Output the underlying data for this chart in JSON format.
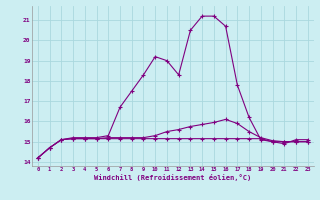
{
  "bg_color": "#cceef2",
  "grid_color": "#aad8de",
  "line_color": "#800080",
  "xlabel": "Windchill (Refroidissement éolien,°C)",
  "xlim": [
    -0.5,
    23.5
  ],
  "ylim": [
    13.8,
    21.7
  ],
  "yticks": [
    14,
    15,
    16,
    17,
    18,
    19,
    20,
    21
  ],
  "xticks": [
    0,
    1,
    2,
    3,
    4,
    5,
    6,
    7,
    8,
    9,
    10,
    11,
    12,
    13,
    14,
    15,
    16,
    17,
    18,
    19,
    20,
    21,
    22,
    23
  ],
  "series1_x": [
    0,
    1,
    2,
    3,
    4,
    5,
    6,
    7,
    8,
    9,
    10,
    11,
    12,
    13,
    14,
    15,
    16,
    17,
    18,
    19,
    20,
    21,
    22,
    23
  ],
  "series1_y": [
    14.2,
    14.7,
    15.1,
    15.15,
    15.15,
    15.15,
    15.15,
    15.15,
    15.15,
    15.15,
    15.15,
    15.15,
    15.15,
    15.15,
    15.15,
    15.15,
    15.15,
    15.15,
    15.15,
    15.15,
    15.0,
    14.9,
    15.1,
    15.1
  ],
  "series2_x": [
    0,
    1,
    2,
    3,
    4,
    5,
    6,
    7,
    8,
    9,
    10,
    11,
    12,
    13,
    14,
    15,
    16,
    17,
    18,
    19,
    20,
    21,
    22,
    23
  ],
  "series2_y": [
    14.2,
    14.7,
    15.1,
    15.15,
    15.15,
    15.15,
    15.2,
    15.2,
    15.2,
    15.2,
    15.3,
    15.5,
    15.6,
    15.75,
    15.85,
    15.95,
    16.1,
    15.9,
    15.5,
    15.2,
    15.05,
    15.0,
    15.0,
    15.0
  ],
  "series3_x": [
    0,
    1,
    2,
    3,
    4,
    5,
    6,
    7,
    8,
    9,
    10,
    11,
    12,
    13,
    14,
    15,
    16,
    17,
    18,
    19,
    20,
    21,
    22,
    23
  ],
  "series3_y": [
    14.2,
    14.7,
    15.1,
    15.2,
    15.2,
    15.2,
    15.3,
    16.7,
    17.5,
    18.3,
    19.2,
    19.0,
    18.3,
    20.5,
    21.2,
    21.2,
    20.7,
    17.8,
    16.2,
    15.1,
    15.0,
    15.0,
    15.0,
    15.0
  ]
}
